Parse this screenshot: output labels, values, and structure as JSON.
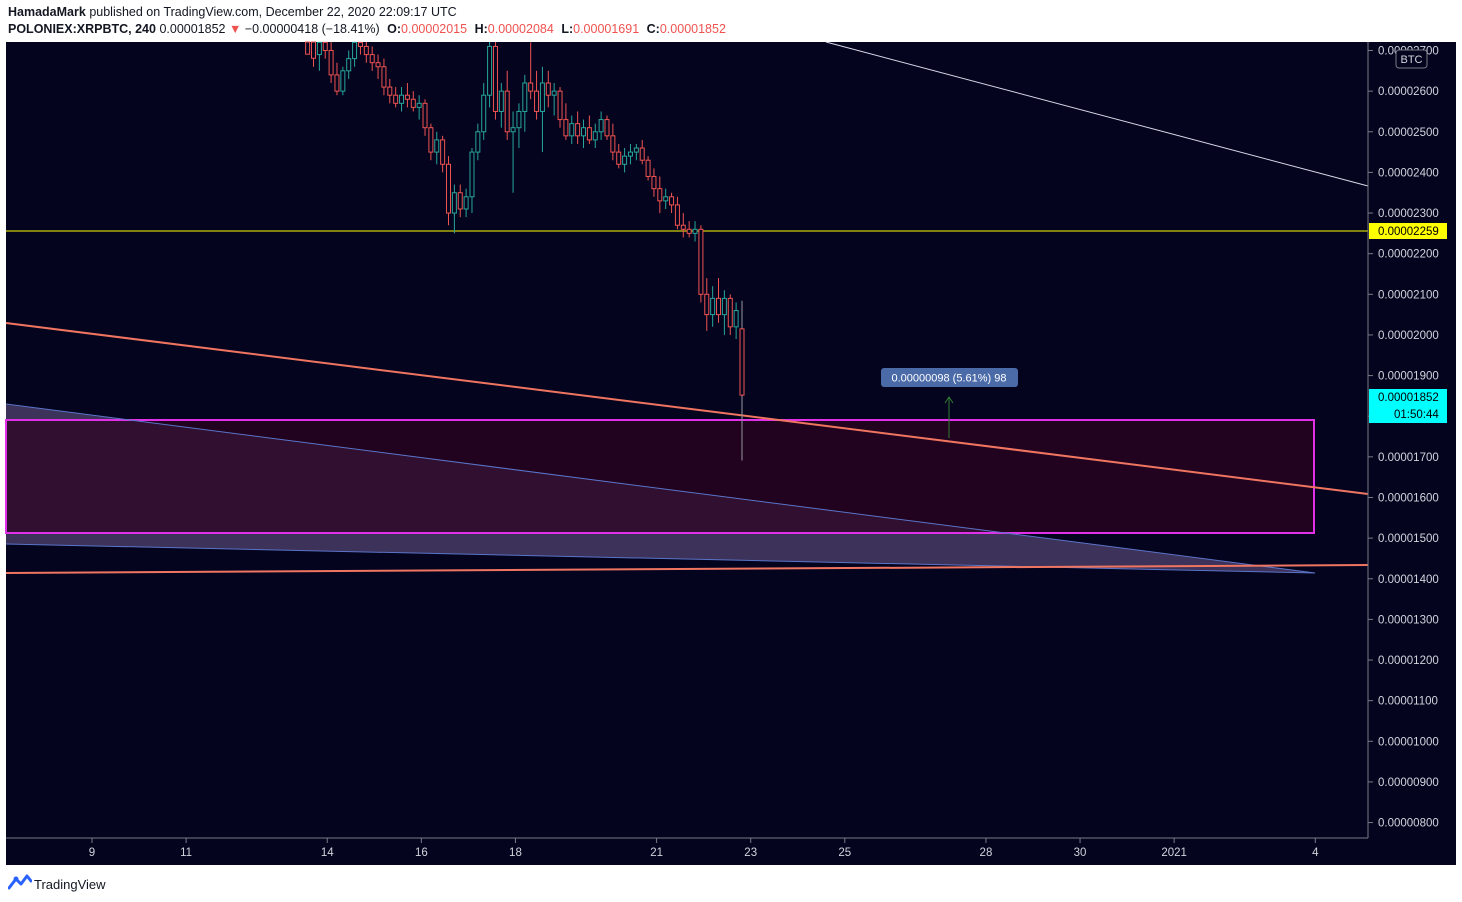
{
  "header": {
    "author": "HamadaMark",
    "published": "published on TradingView.com, December 22, 2020 22:09:17 UTC",
    "symbol": "POLONIEX:XRPBTC, 240",
    "last": "0.00001852",
    "change_arrow": "▼",
    "change": "−0.00000418 (−18.41%)",
    "o_label": "O:",
    "o_value": "0.00002015",
    "h_label": "H:",
    "h_value": "0.00002084",
    "l_label": "L:",
    "l_value": "0.00001691",
    "c_label": "C:",
    "c_value": "0.00001852"
  },
  "footer": {
    "brand": "TradingView",
    "logo_icon": "tradingview-logo-icon"
  },
  "colors": {
    "background": "#05041f",
    "up_candle": "#26a69a",
    "down_candle": "#ef5350",
    "support_line": "#ffff00",
    "trend_line": "#f07560",
    "zone_border": "#e030e8",
    "zone_fill": "#2c0220",
    "channel_blue": "#5a74c8",
    "price_tag": "#00ffff",
    "measure_box": "#4a6aa8"
  },
  "chart_data": {
    "type": "candlestick",
    "symbol": "POLONIEX:XRPBTC",
    "interval": "240",
    "currency_label": "BTC",
    "ylim": [
      7.8e-06,
      2.77e-05
    ],
    "y_ticks": [
      "0.00002700",
      "0.00002600",
      "0.00002500",
      "0.00002400",
      "0.00002300",
      "0.00002200",
      "0.00002100",
      "0.00002000",
      "0.00001900",
      "0.00001800",
      "0.00001700",
      "0.00001600",
      "0.00001500",
      "0.00001400",
      "0.00001300",
      "0.00001200",
      "0.00001100",
      "0.00001000",
      "0.00000900",
      "0.00000800"
    ],
    "y_tick_values": [
      2.7e-05,
      2.6e-05,
      2.5e-05,
      2.4e-05,
      2.3e-05,
      2.2e-05,
      2.1e-05,
      2e-05,
      1.9e-05,
      1.8e-05,
      1.7e-05,
      1.6e-05,
      1.5e-05,
      1.4e-05,
      1.3e-05,
      1.2e-05,
      1.1e-05,
      1e-05,
      9e-06,
      8e-06
    ],
    "x_ticks": [
      "9",
      "11",
      "14",
      "16",
      "18",
      "21",
      "23",
      "25",
      "28",
      "30",
      "2021",
      "4"
    ],
    "x_tick_days": [
      9,
      11,
      14,
      16,
      18,
      21,
      23,
      25,
      28,
      30,
      32,
      35
    ],
    "last_price": 1.852e-05,
    "last_price_label": "0.00001852",
    "countdown": "01:50:44",
    "support_price": 2.259e-05,
    "support_label": "0.00002259",
    "measure_label": "0.00000098 (5.61%) 98",
    "candles": [
      {
        "o": 2.76,
        "h": 2.78,
        "l": 2.71,
        "c": 2.73
      },
      {
        "o": 2.73,
        "h": 2.75,
        "l": 2.66,
        "c": 2.69
      },
      {
        "o": 2.69,
        "h": 2.74,
        "l": 2.65,
        "c": 2.72
      },
      {
        "o": 2.72,
        "h": 2.75,
        "l": 2.68,
        "c": 2.7
      },
      {
        "o": 2.7,
        "h": 2.73,
        "l": 2.62,
        "c": 2.64
      },
      {
        "o": 2.64,
        "h": 2.67,
        "l": 2.59,
        "c": 2.6
      },
      {
        "o": 2.6,
        "h": 2.66,
        "l": 2.59,
        "c": 2.65
      },
      {
        "o": 2.65,
        "h": 2.7,
        "l": 2.63,
        "c": 2.68
      },
      {
        "o": 2.68,
        "h": 2.74,
        "l": 2.66,
        "c": 2.72
      },
      {
        "o": 2.72,
        "h": 2.76,
        "l": 2.69,
        "c": 2.71
      },
      {
        "o": 2.71,
        "h": 2.73,
        "l": 2.67,
        "c": 2.69
      },
      {
        "o": 2.69,
        "h": 2.71,
        "l": 2.65,
        "c": 2.67
      },
      {
        "o": 2.67,
        "h": 2.69,
        "l": 2.63,
        "c": 2.66
      },
      {
        "o": 2.66,
        "h": 2.68,
        "l": 2.59,
        "c": 2.61
      },
      {
        "o": 2.61,
        "h": 2.63,
        "l": 2.57,
        "c": 2.59
      },
      {
        "o": 2.59,
        "h": 2.61,
        "l": 2.56,
        "c": 2.57
      },
      {
        "o": 2.57,
        "h": 2.61,
        "l": 2.55,
        "c": 2.59
      },
      {
        "o": 2.59,
        "h": 2.62,
        "l": 2.56,
        "c": 2.58
      },
      {
        "o": 2.58,
        "h": 2.6,
        "l": 2.55,
        "c": 2.56
      },
      {
        "o": 2.56,
        "h": 2.59,
        "l": 2.53,
        "c": 2.57
      },
      {
        "o": 2.57,
        "h": 2.58,
        "l": 2.49,
        "c": 2.51
      },
      {
        "o": 2.51,
        "h": 2.52,
        "l": 2.43,
        "c": 2.45
      },
      {
        "o": 2.45,
        "h": 2.5,
        "l": 2.42,
        "c": 2.48
      },
      {
        "o": 2.48,
        "h": 2.49,
        "l": 2.4,
        "c": 2.42
      },
      {
        "o": 2.42,
        "h": 2.44,
        "l": 2.27,
        "c": 2.3
      },
      {
        "o": 2.3,
        "h": 2.37,
        "l": 2.25,
        "c": 2.35
      },
      {
        "o": 2.35,
        "h": 2.37,
        "l": 2.29,
        "c": 2.31
      },
      {
        "o": 2.31,
        "h": 2.36,
        "l": 2.29,
        "c": 2.34
      },
      {
        "o": 2.34,
        "h": 2.46,
        "l": 2.3,
        "c": 2.45
      },
      {
        "o": 2.45,
        "h": 2.52,
        "l": 2.43,
        "c": 2.5
      },
      {
        "o": 2.5,
        "h": 2.62,
        "l": 2.48,
        "c": 2.59
      },
      {
        "o": 2.59,
        "h": 2.73,
        "l": 2.56,
        "c": 2.71
      },
      {
        "o": 2.71,
        "h": 2.75,
        "l": 2.53,
        "c": 2.55
      },
      {
        "o": 2.55,
        "h": 2.62,
        "l": 2.51,
        "c": 2.6
      },
      {
        "o": 2.6,
        "h": 2.65,
        "l": 2.48,
        "c": 2.5
      },
      {
        "o": 2.5,
        "h": 2.55,
        "l": 2.35,
        "c": 2.51
      },
      {
        "o": 2.51,
        "h": 2.57,
        "l": 2.46,
        "c": 2.55
      },
      {
        "o": 2.55,
        "h": 2.64,
        "l": 2.5,
        "c": 2.62
      },
      {
        "o": 2.62,
        "h": 2.72,
        "l": 2.58,
        "c": 2.6
      },
      {
        "o": 2.6,
        "h": 2.65,
        "l": 2.53,
        "c": 2.55
      },
      {
        "o": 2.55,
        "h": 2.66,
        "l": 2.45,
        "c": 2.62
      },
      {
        "o": 2.62,
        "h": 2.65,
        "l": 2.56,
        "c": 2.59
      },
      {
        "o": 2.59,
        "h": 2.62,
        "l": 2.54,
        "c": 2.6
      },
      {
        "o": 2.6,
        "h": 2.61,
        "l": 2.51,
        "c": 2.53
      },
      {
        "o": 2.53,
        "h": 2.57,
        "l": 2.48,
        "c": 2.49
      },
      {
        "o": 2.49,
        "h": 2.54,
        "l": 2.47,
        "c": 2.52
      },
      {
        "o": 2.52,
        "h": 2.55,
        "l": 2.47,
        "c": 2.49
      },
      {
        "o": 2.49,
        "h": 2.53,
        "l": 2.46,
        "c": 2.51
      },
      {
        "o": 2.51,
        "h": 2.54,
        "l": 2.47,
        "c": 2.48
      },
      {
        "o": 2.48,
        "h": 2.52,
        "l": 2.46,
        "c": 2.5
      },
      {
        "o": 2.5,
        "h": 2.55,
        "l": 2.48,
        "c": 2.53
      },
      {
        "o": 2.53,
        "h": 2.54,
        "l": 2.48,
        "c": 2.49
      },
      {
        "o": 2.49,
        "h": 2.52,
        "l": 2.43,
        "c": 2.45
      },
      {
        "o": 2.45,
        "h": 2.47,
        "l": 2.41,
        "c": 2.42
      },
      {
        "o": 2.42,
        "h": 2.46,
        "l": 2.4,
        "c": 2.44
      },
      {
        "o": 2.44,
        "h": 2.47,
        "l": 2.42,
        "c": 2.45
      },
      {
        "o": 2.45,
        "h": 2.47,
        "l": 2.43,
        "c": 2.46
      },
      {
        "o": 2.46,
        "h": 2.48,
        "l": 2.42,
        "c": 2.43
      },
      {
        "o": 2.43,
        "h": 2.44,
        "l": 2.38,
        "c": 2.39
      },
      {
        "o": 2.39,
        "h": 2.41,
        "l": 2.34,
        "c": 2.36
      },
      {
        "o": 2.36,
        "h": 2.39,
        "l": 2.3,
        "c": 2.33
      },
      {
        "o": 2.33,
        "h": 2.36,
        "l": 2.31,
        "c": 2.34
      },
      {
        "o": 2.34,
        "h": 2.35,
        "l": 2.3,
        "c": 2.32
      },
      {
        "o": 2.32,
        "h": 2.34,
        "l": 2.26,
        "c": 2.27
      },
      {
        "o": 2.27,
        "h": 2.3,
        "l": 2.24,
        "c": 2.26
      },
      {
        "o": 2.26,
        "h": 2.28,
        "l": 2.24,
        "c": 2.25
      },
      {
        "o": 2.25,
        "h": 2.28,
        "l": 2.23,
        "c": 2.26
      },
      {
        "o": 2.26,
        "h": 2.27,
        "l": 2.08,
        "c": 2.1
      },
      {
        "o": 2.1,
        "h": 2.14,
        "l": 2.01,
        "c": 2.05
      },
      {
        "o": 2.05,
        "h": 2.12,
        "l": 2.02,
        "c": 2.09
      },
      {
        "o": 2.09,
        "h": 2.14,
        "l": 2.03,
        "c": 2.05
      },
      {
        "o": 2.05,
        "h": 2.11,
        "l": 2.0,
        "c": 2.09
      },
      {
        "o": 2.09,
        "h": 2.1,
        "l": 2.0,
        "c": 2.02
      },
      {
        "o": 2.02,
        "h": 2.08,
        "l": 1.99,
        "c": 2.06
      },
      {
        "o": 2.015,
        "h": 2.084,
        "l": 1.691,
        "c": 1.852
      }
    ]
  }
}
